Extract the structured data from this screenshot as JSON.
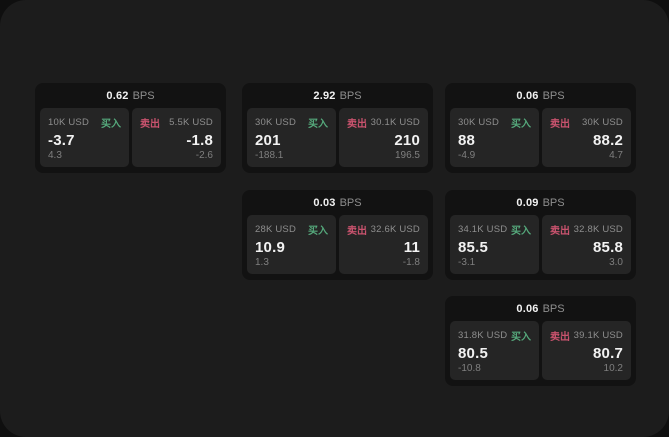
{
  "labels": {
    "bps_unit": "BPS",
    "buy": "买入",
    "sell": "卖出"
  },
  "colors": {
    "buy_green": "#55a87b",
    "sell_red": "#c9536e",
    "value_white": "#f2f2f2",
    "muted_gray": "#8e8e8e",
    "dim_gray": "#7f7f7f",
    "panel_background": "#1c1c1c",
    "card_background": "#121212",
    "tile_background": "#252525"
  },
  "cards": [
    {
      "col": 0,
      "row": 0,
      "bps": "0.62",
      "buy": {
        "amount": "10K USD",
        "value": "-3.7",
        "sub": "4.3"
      },
      "sell": {
        "amount": "5.5K USD",
        "value": "-1.8",
        "sub": "-2.6"
      }
    },
    {
      "col": 1,
      "row": 0,
      "bps": "2.92",
      "buy": {
        "amount": "30K USD",
        "value": "201",
        "sub": "-188.1"
      },
      "sell": {
        "amount": "30.1K USD",
        "value": "210",
        "sub": "196.5"
      }
    },
    {
      "col": 2,
      "row": 0,
      "bps": "0.06",
      "buy": {
        "amount": "30K USD",
        "value": "88",
        "sub": "-4.9"
      },
      "sell": {
        "amount": "30K USD",
        "value": "88.2",
        "sub": "4.7"
      }
    },
    {
      "col": 1,
      "row": 1,
      "bps": "0.03",
      "buy": {
        "amount": "28K USD",
        "value": "10.9",
        "sub": "1.3"
      },
      "sell": {
        "amount": "32.6K USD",
        "value": "11",
        "sub": "-1.8"
      }
    },
    {
      "col": 2,
      "row": 1,
      "bps": "0.09",
      "buy": {
        "amount": "34.1K USD",
        "value": "85.5",
        "sub": "-3.1"
      },
      "sell": {
        "amount": "32.8K USD",
        "value": "85.8",
        "sub": "3.0"
      }
    },
    {
      "col": 2,
      "row": 2,
      "bps": "0.06",
      "buy": {
        "amount": "31.8K USD",
        "value": "80.5",
        "sub": "-10.8"
      },
      "sell": {
        "amount": "39.1K USD",
        "value": "80.7",
        "sub": "10.2"
      }
    }
  ]
}
